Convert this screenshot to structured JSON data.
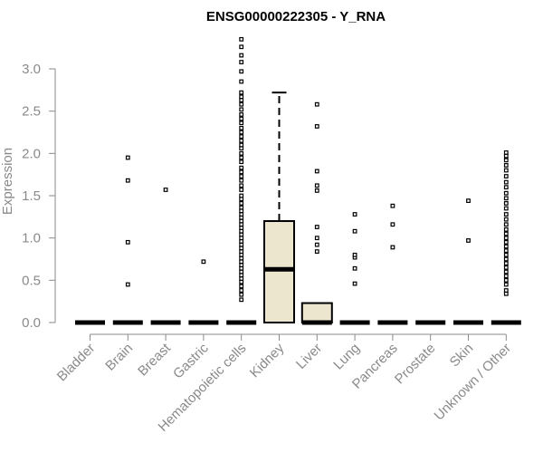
{
  "chart_data": {
    "type": "box",
    "title": "ENSG00000222305 - Y_RNA",
    "xlabel": "",
    "ylabel": "Expression",
    "ylim": [
      0,
      3.3
    ],
    "yticks": [
      0.0,
      0.5,
      1.0,
      1.5,
      2.0,
      2.5,
      3.0
    ],
    "ytick_labels": [
      "0.0",
      "0.5",
      "1.0",
      "1.5",
      "2.0",
      "2.5",
      "3.0"
    ],
    "grid": false,
    "legend": "none",
    "box_fill": "#ede6cf",
    "categories": [
      "Bladder",
      "Brain",
      "Breast",
      "Gastric",
      "Hematopoietic cells",
      "Kidney",
      "Liver",
      "Lung",
      "Pancreas",
      "Prostate",
      "Skin",
      "Unknown / Other"
    ],
    "boxes": [
      {
        "category": "Bladder",
        "q1": 0,
        "median": 0,
        "q3": 0,
        "whisker_low": 0,
        "whisker_high": 0,
        "outliers": []
      },
      {
        "category": "Brain",
        "q1": 0,
        "median": 0,
        "q3": 0,
        "whisker_low": 0,
        "whisker_high": 0,
        "outliers": [
          0.45,
          0.95,
          1.68,
          1.95
        ]
      },
      {
        "category": "Breast",
        "q1": 0,
        "median": 0,
        "q3": 0,
        "whisker_low": 0,
        "whisker_high": 0,
        "outliers": [
          1.57
        ]
      },
      {
        "category": "Gastric",
        "q1": 0,
        "median": 0,
        "q3": 0,
        "whisker_low": 0,
        "whisker_high": 0,
        "outliers": [
          0.72
        ]
      },
      {
        "category": "Hematopoietic cells",
        "q1": 0,
        "median": 0,
        "q3": 0,
        "whisker_low": 0,
        "whisker_high": 0,
        "outliers": [
          0.27,
          0.33,
          0.38,
          0.43,
          0.48,
          0.52,
          0.56,
          0.6,
          0.64,
          0.68,
          0.72,
          0.76,
          0.8,
          0.84,
          0.88,
          0.92,
          0.96,
          1.0,
          1.04,
          1.08,
          1.12,
          1.16,
          1.2,
          1.24,
          1.28,
          1.32,
          1.36,
          1.41,
          1.46,
          1.5,
          1.57,
          1.62,
          1.68,
          1.73,
          1.78,
          1.83,
          1.9,
          1.95,
          2.0,
          2.06,
          2.1,
          2.15,
          2.2,
          2.25,
          2.3,
          2.36,
          2.41,
          2.46,
          2.52,
          2.58,
          2.63,
          2.67,
          2.72,
          2.85,
          2.97,
          3.08,
          3.16,
          3.26,
          3.35
        ]
      },
      {
        "category": "Kidney",
        "q1": 0,
        "median": 0.63,
        "q3": 1.2,
        "whisker_low": 0,
        "whisker_high": 2.72,
        "outliers": []
      },
      {
        "category": "Liver",
        "q1": 0,
        "median": 0,
        "q3": 0.23,
        "whisker_low": 0,
        "whisker_high": 0.23,
        "outliers": [
          0.84,
          0.92,
          1.0,
          1.13,
          1.56,
          1.62,
          1.79,
          2.32,
          2.58
        ]
      },
      {
        "category": "Lung",
        "q1": 0,
        "median": 0,
        "q3": 0,
        "whisker_low": 0,
        "whisker_high": 0,
        "outliers": [
          0.46,
          0.64,
          0.77,
          0.8,
          1.08,
          1.28
        ]
      },
      {
        "category": "Pancreas",
        "q1": 0,
        "median": 0,
        "q3": 0,
        "whisker_low": 0,
        "whisker_high": 0,
        "outliers": [
          0.89,
          1.16,
          1.38
        ]
      },
      {
        "category": "Prostate",
        "q1": 0,
        "median": 0,
        "q3": 0,
        "whisker_low": 0,
        "whisker_high": 0,
        "outliers": []
      },
      {
        "category": "Skin",
        "q1": 0,
        "median": 0,
        "q3": 0,
        "whisker_low": 0,
        "whisker_high": 0,
        "outliers": [
          0.97,
          1.44
        ]
      },
      {
        "category": "Unknown / Other",
        "q1": 0,
        "median": 0,
        "q3": 0,
        "whisker_low": 0,
        "whisker_high": 0,
        "outliers": [
          0.34,
          0.38,
          0.45,
          0.5,
          0.55,
          0.6,
          0.65,
          0.7,
          0.75,
          0.8,
          0.85,
          0.9,
          0.95,
          1.0,
          1.05,
          1.1,
          1.16,
          1.22,
          1.28,
          1.35,
          1.41,
          1.47,
          1.53,
          1.6,
          1.66,
          1.73,
          1.8,
          1.86,
          1.92,
          1.97,
          2.01
        ]
      }
    ]
  }
}
